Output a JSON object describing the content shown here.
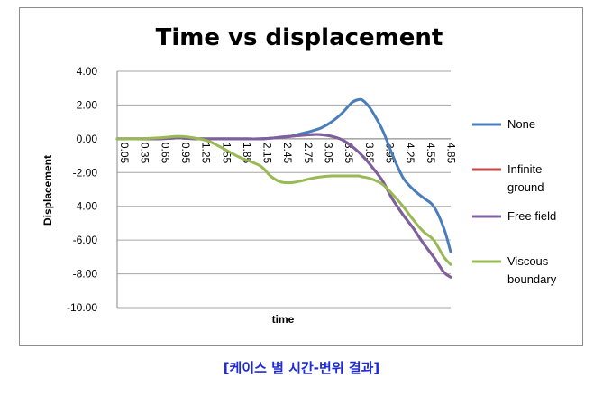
{
  "caption": "[케이스 별 시간-변위 결과]",
  "colors": {
    "None": "#4a7ebb",
    "Infinite ground": "#be4b48",
    "Free field": "#7d60a0",
    "Viscous boundary": "#98b954",
    "grid": "#a6a6a6",
    "caption": "#1f2bd9"
  },
  "chart_data": {
    "type": "line",
    "title": "Time vs displacement",
    "xlabel": "time",
    "ylabel": "Displacement",
    "ylim": [
      -10,
      4
    ],
    "y_ticks": [
      "4.00",
      "2.00",
      "0.00",
      "-2.00",
      "-4.00",
      "-6.00",
      "-8.00",
      "-10.00"
    ],
    "x_tick_labels": [
      "0.05",
      "0.35",
      "0.65",
      "0.95",
      "1.25",
      "1.55",
      "1.85",
      "2.15",
      "2.45",
      "2.75",
      "3.05",
      "3.35",
      "3.65",
      "3.95",
      "4.25",
      "4.55",
      "4.85"
    ],
    "grid": "horizontal",
    "legend_position": "right",
    "x": [
      0.05,
      0.35,
      0.65,
      0.8,
      0.95,
      1.1,
      1.25,
      1.4,
      1.55,
      1.85,
      2.15,
      2.3,
      2.45,
      2.6,
      2.75,
      2.9,
      3.05,
      3.2,
      3.35,
      3.5,
      3.6,
      3.65,
      3.72,
      3.8,
      3.95,
      4.1,
      4.25,
      4.4,
      4.55,
      4.7,
      4.85,
      4.95
    ],
    "series": [
      {
        "name": "None",
        "values": [
          0,
          0,
          0,
          0.05,
          0.05,
          0.02,
          0,
          0,
          0,
          0,
          0,
          0.03,
          0.08,
          0.15,
          0.3,
          0.45,
          0.65,
          1.0,
          1.5,
          2.15,
          2.32,
          2.3,
          2.05,
          1.6,
          0.5,
          -1.0,
          -2.3,
          -3.0,
          -3.5,
          -4.0,
          -5.3,
          -6.7
        ]
      },
      {
        "name": "Infinite ground",
        "values": [
          0,
          0,
          0,
          0.02,
          0.05,
          0.02,
          0,
          0,
          0,
          0,
          0,
          0.03,
          0.1,
          0.15,
          0.2,
          0.25,
          0.25,
          0.15,
          -0.05,
          -0.45,
          -0.8,
          -1.0,
          -1.3,
          -1.7,
          -2.5,
          -3.6,
          -4.5,
          -5.3,
          -6.2,
          -7.0,
          -7.9,
          -8.2
        ]
      },
      {
        "name": "Free field",
        "values": [
          0,
          0,
          0,
          0.02,
          0.05,
          0.02,
          0,
          0,
          0,
          0,
          0,
          0.03,
          0.1,
          0.15,
          0.2,
          0.25,
          0.25,
          0.15,
          -0.05,
          -0.45,
          -0.8,
          -1.0,
          -1.3,
          -1.7,
          -2.5,
          -3.6,
          -4.5,
          -5.3,
          -6.2,
          -7.0,
          -7.9,
          -8.2
        ]
      },
      {
        "name": "Viscous boundary",
        "values": [
          0,
          0,
          0.05,
          0.1,
          0.15,
          0.1,
          0,
          -0.15,
          -0.45,
          -1.1,
          -1.6,
          -2.2,
          -2.55,
          -2.6,
          -2.5,
          -2.35,
          -2.25,
          -2.2,
          -2.2,
          -2.2,
          -2.2,
          -2.25,
          -2.3,
          -2.4,
          -2.7,
          -3.3,
          -4.0,
          -4.8,
          -5.5,
          -6.0,
          -7.0,
          -7.45
        ]
      }
    ]
  }
}
